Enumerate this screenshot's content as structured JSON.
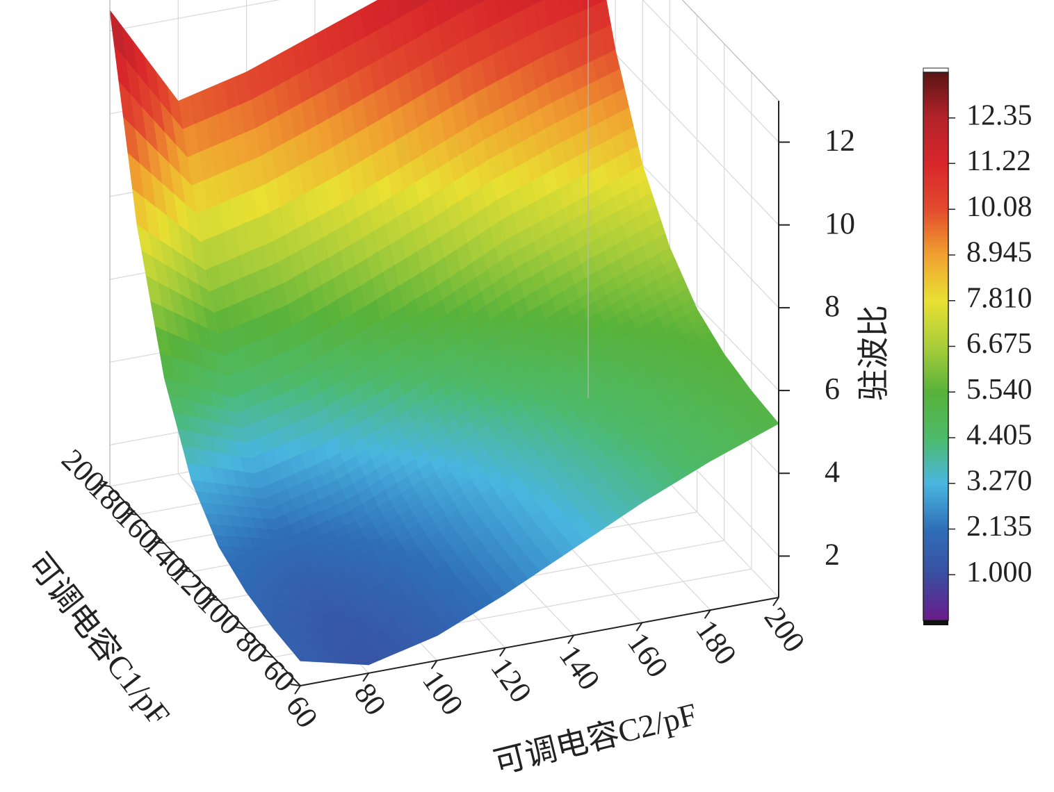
{
  "chart_data": {
    "type": "surface",
    "title": "",
    "x_axis": {
      "label": "可调电容C2/pF",
      "range": [
        60,
        200
      ],
      "ticks": [
        60,
        80,
        100,
        120,
        140,
        160,
        180,
        200
      ]
    },
    "y_axis": {
      "label": "可调电容C1/pF",
      "range": [
        60,
        200
      ],
      "ticks": [
        60,
        80,
        100,
        120,
        140,
        160,
        180,
        200
      ]
    },
    "z_axis": {
      "label": "驻波比",
      "range": [
        1,
        13
      ],
      "ticks": [
        2,
        4,
        6,
        8,
        10,
        12
      ]
    },
    "grid": true,
    "surface": {
      "x": [
        60,
        80,
        100,
        120,
        140,
        160,
        180,
        200
      ],
      "y": [
        60,
        80,
        100,
        120,
        140,
        160,
        180,
        200
      ],
      "z": [
        [
          1.6,
          1.2,
          1.6,
          2.3,
          3.1,
          3.9,
          4.6,
          5.2
        ],
        [
          1.7,
          1.3,
          1.7,
          2.4,
          3.2,
          4.0,
          4.7,
          5.3
        ],
        [
          1.9,
          1.5,
          1.9,
          2.6,
          3.4,
          4.2,
          4.9,
          5.5
        ],
        [
          2.3,
          1.9,
          2.3,
          3.0,
          3.8,
          4.6,
          5.3,
          5.9
        ],
        [
          3.2,
          2.7,
          3.1,
          3.8,
          4.6,
          5.4,
          6.1,
          6.7
        ],
        [
          5.0,
          4.2,
          4.6,
          5.3,
          6.0,
          6.8,
          7.4,
          8.0
        ],
        [
          8.0,
          6.6,
          7.0,
          7.6,
          8.3,
          9.0,
          9.6,
          10.1
        ],
        [
          12.5,
          10.0,
          10.4,
          11.0,
          11.6,
          12.2,
          12.7,
          13.0
        ]
      ]
    },
    "colorbar": {
      "labels": [
        "12.35",
        "11.22",
        "10.08",
        "8.945",
        "7.810",
        "6.675",
        "5.540",
        "4.405",
        "3.270",
        "2.135",
        "1.000"
      ],
      "values": [
        12.35,
        11.22,
        10.08,
        8.945,
        7.81,
        6.675,
        5.54,
        4.405,
        3.27,
        2.135,
        1.0
      ],
      "range": [
        -0.135,
        13.485
      ],
      "colors": [
        "#6a1b8a",
        "#3a4ea0",
        "#2f6fb8",
        "#4ab6e0",
        "#4dba6a",
        "#58b23a",
        "#a9cd3a",
        "#e9e032",
        "#f0a030",
        "#e24a2e",
        "#d8262a",
        "#b3232a",
        "#5a1414"
      ]
    }
  }
}
